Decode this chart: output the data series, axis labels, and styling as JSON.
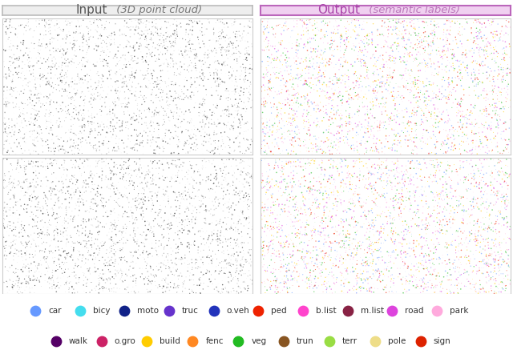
{
  "title_left": "Input",
  "title_left_italic": " (3D point cloud)",
  "title_right": "Output",
  "title_right_italic": " (semantic labels)",
  "title_left_bg": "#eeeeee",
  "title_left_border": "#bbbbbb",
  "title_right_bg": "#f0d0f0",
  "title_right_border": "#bb66bb",
  "title_left_color": "#444444",
  "title_right_color": "#aa44aa",
  "legend_row1": [
    {
      "label": "car",
      "color": "#6699ff"
    },
    {
      "label": "bicy",
      "color": "#44ddee"
    },
    {
      "label": "moto",
      "color": "#112288"
    },
    {
      "label": "truc",
      "color": "#6633cc"
    },
    {
      "label": "o.veh",
      "color": "#2233bb"
    },
    {
      "label": "ped",
      "color": "#ee2200"
    },
    {
      "label": "b.list",
      "color": "#ff44cc"
    },
    {
      "label": "m.list",
      "color": "#882244"
    },
    {
      "label": "road",
      "color": "#dd44dd"
    },
    {
      "label": "park",
      "color": "#ffaadd"
    }
  ],
  "legend_row2": [
    {
      "label": "walk",
      "color": "#550066"
    },
    {
      "label": "o.gro",
      "color": "#cc2266"
    },
    {
      "label": "build",
      "color": "#ffcc00"
    },
    {
      "label": "fenc",
      "color": "#ff8822"
    },
    {
      "label": "veg",
      "color": "#22bb22"
    },
    {
      "label": "trun",
      "color": "#885522"
    },
    {
      "label": "terr",
      "color": "#99dd44"
    },
    {
      "label": "pole",
      "color": "#eedd88"
    },
    {
      "label": "sign",
      "color": "#dd2200"
    }
  ],
  "fig_width": 6.4,
  "fig_height": 4.47,
  "background": "#ffffff"
}
